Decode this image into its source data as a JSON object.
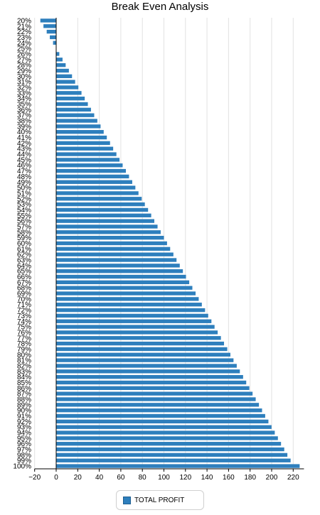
{
  "chart_data": {
    "type": "bar",
    "orientation": "horizontal",
    "title": "Break Even Analysis",
    "xlabel": "",
    "ylabel": "",
    "xlim": [
      -20,
      230
    ],
    "x_ticks": [
      -20,
      0,
      20,
      40,
      60,
      80,
      100,
      120,
      140,
      160,
      180,
      200,
      220
    ],
    "grid": "vertical",
    "legend": "bottom",
    "bar_color": "#2e7fbd",
    "categories": [
      "20%",
      "21%",
      "22%",
      "23%",
      "24%",
      "25%",
      "26%",
      "27%",
      "28%",
      "29%",
      "30%",
      "31%",
      "32%",
      "33%",
      "34%",
      "35%",
      "36%",
      "37%",
      "38%",
      "39%",
      "40%",
      "41%",
      "42%",
      "43%",
      "44%",
      "45%",
      "46%",
      "47%",
      "48%",
      "49%",
      "50%",
      "51%",
      "52%",
      "53%",
      "54%",
      "55%",
      "56%",
      "57%",
      "58%",
      "59%",
      "60%",
      "61%",
      "62%",
      "63%",
      "64%",
      "65%",
      "66%",
      "67%",
      "68%",
      "69%",
      "70%",
      "71%",
      "72%",
      "73%",
      "74%",
      "75%",
      "76%",
      "77%",
      "78%",
      "79%",
      "80%",
      "81%",
      "82%",
      "83%",
      "84%",
      "85%",
      "86%",
      "87%",
      "88%",
      "89%",
      "90%",
      "91%",
      "92%",
      "93%",
      "94%",
      "95%",
      "96%",
      "97%",
      "98%",
      "99%",
      "100%"
    ],
    "series": [
      {
        "name": "TOTAL PROFIT",
        "values": [
          -14.7,
          -11.8,
          -8.8,
          -5.9,
          -2.9,
          0,
          2.9,
          5.9,
          8.8,
          11.8,
          14.7,
          17.6,
          20.6,
          23.5,
          26.5,
          29.4,
          32.3,
          35.3,
          38.2,
          41.2,
          44.1,
          47.0,
          50.0,
          52.9,
          55.9,
          58.8,
          61.7,
          64.7,
          67.6,
          70.6,
          73.5,
          76.4,
          79.4,
          82.3,
          85.3,
          88.2,
          91.1,
          94.1,
          97.0,
          100.0,
          102.9,
          105.8,
          108.8,
          111.7,
          114.7,
          117.6,
          120.5,
          123.5,
          126.4,
          129.4,
          132.3,
          135.2,
          138.2,
          141.1,
          144.1,
          147.0,
          149.9,
          152.9,
          155.8,
          158.8,
          161.7,
          164.6,
          167.6,
          170.5,
          173.5,
          176.4,
          179.3,
          182.3,
          185.2,
          188.2,
          191.1,
          194.0,
          197.0,
          199.9,
          202.9,
          205.8,
          208.7,
          211.7,
          214.6,
          217.6,
          226.0
        ]
      }
    ]
  }
}
